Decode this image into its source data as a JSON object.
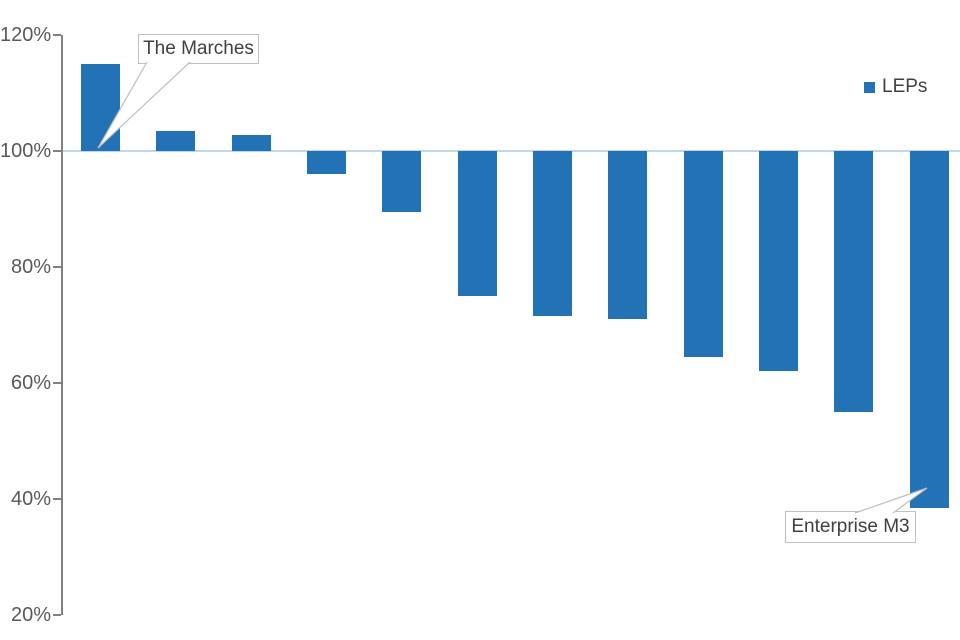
{
  "chart_data": {
    "type": "bar",
    "title": "",
    "unit": "%",
    "baseline_value": 100,
    "y_axis": {
      "tick_labels": [
        "120%",
        "100%",
        "80%",
        "60%",
        "40%",
        "20%"
      ],
      "tick_values": [
        120,
        100,
        80,
        60,
        40,
        20
      ],
      "min": 20,
      "max": 120
    },
    "categories": [
      "",
      "",
      "",
      "",
      "",
      "",
      "",
      "",
      "",
      "",
      "",
      ""
    ],
    "series": [
      {
        "name": "LEPs",
        "values": [
          115,
          103.5,
          102.8,
          96,
          89.5,
          75,
          71.5,
          71,
          64.5,
          62,
          55,
          38.5
        ]
      }
    ],
    "legend": {
      "label": "LEPs",
      "position": "top-right"
    },
    "annotations": [
      {
        "text": "The Marches",
        "bar_index": 0
      },
      {
        "text": "Enterprise M3",
        "bar_index": 11
      }
    ],
    "grid": "baseline-only",
    "x_axis_labels_visible": false
  },
  "colors": {
    "bar": "#2272B5",
    "baseline_gridline": "#BDD7EE",
    "axis": "#808080",
    "tick_text": "#595959",
    "legend_text": "#404040",
    "annotation_text": "#404040",
    "annotation_border": "#BFBFBF"
  }
}
